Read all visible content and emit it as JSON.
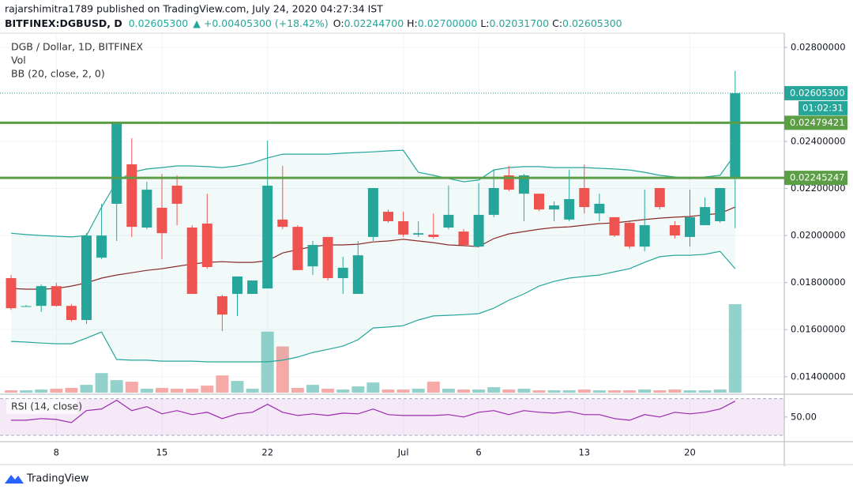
{
  "header": {
    "publisher": "rajarshimitra1789 published on TradingView.com, July 24, 2020 04:27:34 IST",
    "symbol": "BITFINEX:DGBUSD, D",
    "last": "0.02605300",
    "change": "▲ +0.00405300 (+18.42%)",
    "ohlc": [
      {
        "key": "O:",
        "value": "0.02244700"
      },
      {
        "key": "H:",
        "value": "0.02700000"
      },
      {
        "key": "L:",
        "value": "0.02031700"
      },
      {
        "key": "C:",
        "value": "0.02605300"
      }
    ]
  },
  "chart_data": {
    "type": "candlestick",
    "title": "DGB / Dollar, 1D, BITFINEX",
    "categories": [
      null,
      null,
      null,
      "8",
      null,
      null,
      null,
      null,
      null,
      null,
      "15",
      null,
      null,
      null,
      null,
      null,
      null,
      "22",
      null,
      null,
      null,
      null,
      null,
      null,
      null,
      null,
      "Jul",
      null,
      null,
      null,
      null,
      "6",
      null,
      null,
      null,
      null,
      null,
      null,
      "13",
      null,
      null,
      null,
      null,
      null,
      null,
      "20",
      null,
      null,
      null
    ],
    "open": [
      0.01819,
      0.017,
      0.01701,
      0.01785,
      0.01701,
      0.01641,
      0.01906,
      0.02135,
      0.02303,
      0.02034,
      0.02118,
      0.02212,
      0.02034,
      0.02051,
      0.01742,
      0.01752,
      0.01752,
      0.01775,
      0.02068,
      0.02037,
      0.01869,
      0.01994,
      0.01819,
      0.01752,
      0.01994,
      0.02101,
      0.02061,
      0.02004,
      0.02004,
      0.02034,
      0.02017,
      0.01953,
      0.02088,
      0.02256,
      0.02178,
      0.02178,
      0.02111,
      0.02068,
      0.02202,
      0.02094,
      0.02078,
      0.02054,
      0.01953,
      0.02202,
      0.02044,
      0.01994,
      0.02044,
      0.02061,
      0.022447
    ],
    "high": [
      0.01832,
      0.01705,
      0.01792,
      0.01799,
      0.01708,
      0.0201,
      0.02135,
      0.0248,
      0.02414,
      0.02229,
      0.02262,
      0.02256,
      0.02044,
      0.02178,
      0.01748,
      0.01826,
      0.01809,
      0.02404,
      0.02296,
      0.02044,
      0.01977,
      0.01994,
      0.0191,
      0.01977,
      0.02202,
      0.02111,
      0.02101,
      0.02061,
      0.02094,
      0.02212,
      0.02027,
      0.02222,
      0.02279,
      0.02296,
      0.02262,
      0.02178,
      0.02145,
      0.02279,
      0.02303,
      0.02178,
      0.02078,
      0.02061,
      0.02195,
      0.02202,
      0.02061,
      0.02195,
      0.02162,
      0.02202,
      0.027
    ],
    "low": [
      0.01684,
      0.01698,
      0.01675,
      0.01698,
      0.01634,
      0.01624,
      0.019,
      0.01977,
      0.01994,
      0.02027,
      0.019,
      0.02044,
      0.01752,
      0.01859,
      0.01594,
      0.01658,
      0.01752,
      0.01775,
      0.02027,
      0.01853,
      0.01832,
      0.01809,
      0.01752,
      0.01752,
      0.01977,
      0.02054,
      0.01994,
      0.01994,
      0.01987,
      0.02027,
      0.01953,
      0.01953,
      0.02078,
      0.02188,
      0.02061,
      0.02104,
      0.02061,
      0.02061,
      0.02094,
      0.02061,
      0.01994,
      0.01943,
      0.01933,
      0.02111,
      0.01987,
      0.01953,
      0.02044,
      0.02054,
      0.020317
    ],
    "close": [
      0.01691,
      0.017,
      0.01785,
      0.01701,
      0.01641,
      0.02,
      0.02,
      0.0248,
      0.02037,
      0.02195,
      0.0201,
      0.02135,
      0.01752,
      0.01866,
      0.01664,
      0.01826,
      0.01809,
      0.02212,
      0.02037,
      0.01853,
      0.0196,
      0.01819,
      0.01863,
      0.01916,
      0.02202,
      0.02061,
      0.02004,
      0.0201,
      0.01994,
      0.02088,
      0.0196,
      0.02088,
      0.02202,
      0.02195,
      0.02256,
      0.02111,
      0.02128,
      0.02155,
      0.02121,
      0.02135,
      0.02,
      0.01953,
      0.02044,
      0.02121,
      0.02,
      0.02078,
      0.02121,
      0.02202,
      0.026053
    ],
    "up_color": "#26a69a",
    "down_color": "#ef5350",
    "ylim": [
      0.01332,
      0.02857
    ],
    "yticks": [
      {
        "value": 0.014,
        "label": "0.01400000"
      },
      {
        "value": 0.016,
        "label": "0.01600000"
      },
      {
        "value": 0.018,
        "label": "0.01800000"
      },
      {
        "value": 0.02,
        "label": "0.02000000"
      },
      {
        "value": 0.022,
        "label": "0.02200000"
      },
      {
        "value": 0.024,
        "label": "0.02400000"
      },
      {
        "value": 0.028,
        "label": "0.02800000"
      }
    ],
    "grid": true,
    "volume": {
      "name": "Vol",
      "up_color": "#93d2cc",
      "down_color": "#f7a9a7",
      "values": [
        3,
        3,
        4,
        5,
        6,
        10,
        25,
        16,
        14,
        5,
        6,
        5,
        5,
        9,
        22,
        15,
        5,
        78,
        59,
        6,
        10,
        5,
        4,
        8,
        13,
        4,
        4,
        5,
        14,
        5,
        4,
        4,
        7,
        4,
        5,
        3,
        3,
        3,
        4,
        3,
        3,
        3,
        4,
        3,
        4,
        3,
        3,
        4,
        113
      ]
    },
    "bollinger": {
      "name": "BB (20, close, 2, 0)",
      "band_color": "#26a69a",
      "basis_color": "#8b2b2b",
      "upper": [
        0.0201,
        0.02004,
        0.02,
        0.01997,
        0.01994,
        0.02,
        0.02121,
        0.02229,
        0.02269,
        0.02283,
        0.02289,
        0.02296,
        0.02296,
        0.02293,
        0.02289,
        0.02296,
        0.02309,
        0.0233,
        0.02346,
        0.02346,
        0.02346,
        0.02346,
        0.0235,
        0.02353,
        0.02356,
        0.0236,
        0.02363,
        0.02269,
        0.02256,
        0.02242,
        0.02229,
        0.02236,
        0.02279,
        0.02289,
        0.02293,
        0.02293,
        0.02289,
        0.02289,
        0.02289,
        0.02286,
        0.02283,
        0.02279,
        0.02269,
        0.02256,
        0.02249,
        0.02242,
        0.02249,
        0.02256,
        0.02346
      ],
      "basis": [
        0.01775,
        0.01772,
        0.01772,
        0.01775,
        0.01785,
        0.01799,
        0.01819,
        0.01832,
        0.01842,
        0.01852,
        0.01859,
        0.01869,
        0.01879,
        0.01886,
        0.01889,
        0.01886,
        0.01886,
        0.01893,
        0.01926,
        0.0194,
        0.01953,
        0.0196,
        0.0196,
        0.01963,
        0.01973,
        0.01977,
        0.01984,
        0.01977,
        0.0197,
        0.0196,
        0.01957,
        0.01953,
        0.01987,
        0.02007,
        0.02017,
        0.02027,
        0.02034,
        0.02037,
        0.02044,
        0.02051,
        0.02054,
        0.02061,
        0.02068,
        0.02074,
        0.02078,
        0.02081,
        0.02088,
        0.02094,
        0.02121
      ],
      "lower": [
        0.0155,
        0.01547,
        0.01543,
        0.0154,
        0.0154,
        0.01564,
        0.0159,
        0.01473,
        0.0147,
        0.0147,
        0.01466,
        0.01466,
        0.01466,
        0.01463,
        0.01463,
        0.01463,
        0.01463,
        0.01463,
        0.0147,
        0.01483,
        0.01503,
        0.01516,
        0.0153,
        0.01557,
        0.01607,
        0.01611,
        0.01617,
        0.01641,
        0.01658,
        0.01661,
        0.01664,
        0.01668,
        0.01691,
        0.01725,
        0.01752,
        0.01785,
        0.01805,
        0.01819,
        0.01826,
        0.01832,
        0.01846,
        0.01859,
        0.01886,
        0.0191,
        0.01916,
        0.01916,
        0.0192,
        0.01933,
        0.01859
      ]
    },
    "levels": [
      {
        "value": 0.02479421,
        "label": "0.02479421"
      },
      {
        "value": 0.02245247,
        "label": "0.02245247"
      }
    ],
    "level_color": "#5c9e45",
    "last_price": {
      "value": 0.026053,
      "label": "0.02605300"
    },
    "countdown": "01:02:31",
    "rsi": {
      "name": "RSI (14, close)",
      "color": "#9c27b0",
      "ylim": [
        24,
        74
      ],
      "yticks": [
        {
          "value": 50,
          "label": "50.00"
        }
      ],
      "bands": [
        30,
        70
      ],
      "values": [
        46.5,
        46.5,
        48.3,
        47.4,
        43.9,
        57,
        58.7,
        68.3,
        57,
        61.3,
        53.5,
        57,
        52.6,
        55.2,
        48.3,
        53.5,
        55.2,
        63.9,
        55.2,
        51.7,
        53.5,
        51.7,
        54.3,
        53.5,
        58.7,
        52.6,
        51.7,
        51.7,
        51.7,
        52.6,
        50,
        55.2,
        57,
        52.6,
        57,
        55.2,
        54.3,
        56.1,
        52.6,
        52.6,
        48.3,
        46.5,
        52.6,
        50,
        55.2,
        53.5,
        55.2,
        58.7,
        67.4
      ]
    }
  },
  "footer": {
    "brand": "TradingView"
  }
}
